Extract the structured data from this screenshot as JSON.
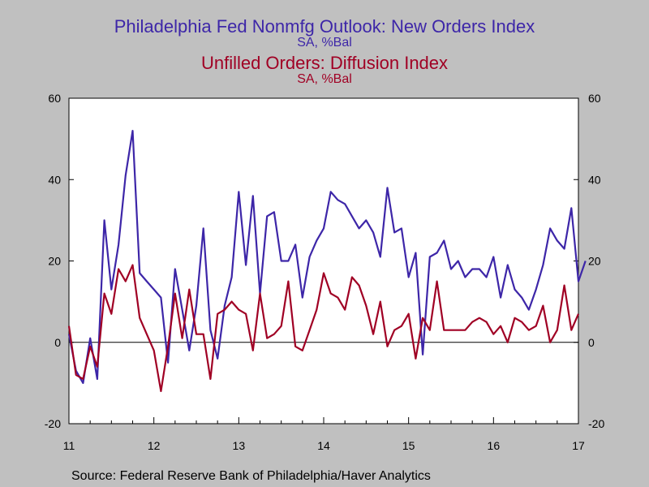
{
  "title_primary": "Philadelphia Fed Nonmfg Outlook: New Orders Index",
  "subtitle_primary": "SA, %Bal",
  "title_secondary": "Unfilled Orders: Diffusion Index",
  "subtitle_secondary": "SA, %Bal",
  "source": "Source:  Federal Reserve Bank of Philadelphia/Haver Analytics",
  "colors": {
    "series1": "#3d26a8",
    "series2": "#a00024",
    "plot_bg": "#ffffff",
    "page_bg": "#c0c0c0"
  },
  "chart_data": {
    "type": "line",
    "x_start": "2011-01",
    "frequency": "monthly",
    "x_tick_labels": [
      "11",
      "12",
      "13",
      "14",
      "15",
      "16",
      "17"
    ],
    "y_ticks": [
      -20,
      0,
      20,
      40,
      60
    ],
    "ylim": [
      -20,
      60
    ],
    "grid": false,
    "zero_line": true,
    "series": [
      {
        "name": "Philadelphia Fed Nonmfg Outlook: New Orders Index",
        "values": [
          2,
          -7,
          -10,
          1,
          -9,
          30,
          13,
          24,
          41,
          52,
          17,
          15,
          13,
          11,
          -5,
          18,
          8,
          -2,
          9,
          28,
          3,
          -4,
          9,
          16,
          37,
          19,
          36,
          12,
          31,
          32,
          20,
          20,
          24,
          11,
          21,
          25,
          28,
          37,
          35,
          34,
          31,
          28,
          30,
          27,
          21,
          38,
          27,
          28,
          16,
          22,
          -3,
          21,
          22,
          25,
          18,
          20,
          16,
          18,
          18,
          16,
          21,
          11,
          19,
          13,
          11,
          8,
          13,
          19,
          28,
          25,
          23,
          33,
          15,
          20
        ]
      },
      {
        "name": "Unfilled Orders: Diffusion Index",
        "values": [
          4,
          -8,
          -9,
          -1,
          -6,
          12,
          7,
          18,
          15,
          19,
          6,
          2,
          -2,
          -12,
          -1,
          12,
          1,
          13,
          2,
          2,
          -9,
          7,
          8,
          10,
          8,
          7,
          -2,
          12,
          1,
          2,
          4,
          15,
          -1,
          -2,
          3,
          8,
          17,
          12,
          11,
          8,
          16,
          14,
          9,
          2,
          10,
          -1,
          3,
          4,
          7,
          -4,
          6,
          3,
          15,
          3,
          3,
          3,
          3,
          5,
          6,
          5,
          2,
          4,
          0,
          6,
          5,
          3,
          4,
          9,
          0,
          3,
          14,
          3,
          7
        ]
      }
    ]
  }
}
